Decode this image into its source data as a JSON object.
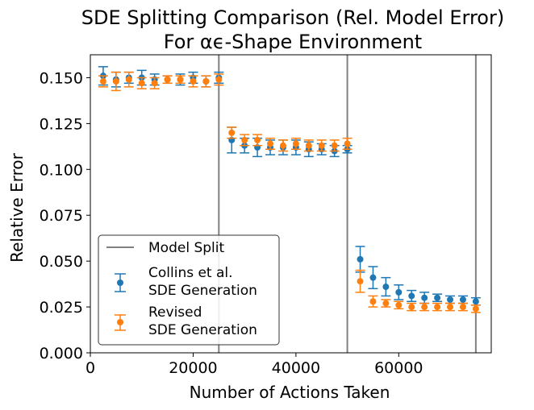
{
  "chart_data": {
    "type": "scatter",
    "title": "SDE Splitting Comparison (Rel. Model Error)",
    "subtitle": "For αϵ-Shape Environment",
    "xlabel": "Number of Actions Taken",
    "ylabel": "Relative Error",
    "xlim": [
      0,
      78000
    ],
    "ylim": [
      0.0,
      0.1625
    ],
    "x_ticks": [
      0,
      20000,
      40000,
      60000
    ],
    "y_ticks": [
      0.0,
      0.025,
      0.05,
      0.075,
      0.1,
      0.125,
      0.15
    ],
    "x_tick_labels": [
      "0",
      "20000",
      "40000",
      "60000"
    ],
    "y_tick_labels": [
      "0.000",
      "0.025",
      "0.050",
      "0.075",
      "0.100",
      "0.125",
      "0.150"
    ],
    "split_lines": [
      25000,
      50000,
      75000
    ],
    "legend": {
      "position": "lower-left",
      "split_label": "Model Split",
      "entries": [
        {
          "line1": "Collins et al.",
          "line2": "SDE Generation"
        },
        {
          "line1": "Revised",
          "line2": "SDE Generation"
        }
      ]
    },
    "series": [
      {
        "name": "Collins et al. SDE Generation",
        "color": "#1f77b4",
        "x": [
          2500,
          5000,
          7500,
          10000,
          12500,
          15000,
          17500,
          20000,
          22500,
          25000,
          27500,
          30000,
          32500,
          35000,
          37500,
          40000,
          42500,
          45000,
          47500,
          50000,
          52500,
          55000,
          57500,
          60000,
          62500,
          65000,
          67500,
          70000,
          72500,
          75000
        ],
        "y": [
          0.151,
          0.149,
          0.15,
          0.15,
          0.149,
          0.149,
          0.149,
          0.15,
          0.148,
          0.15,
          0.116,
          0.113,
          0.112,
          0.112,
          0.112,
          0.112,
          0.111,
          0.111,
          0.11,
          0.111,
          0.051,
          0.041,
          0.036,
          0.033,
          0.031,
          0.03,
          0.03,
          0.029,
          0.029,
          0.028
        ],
        "err": [
          0.005,
          0.004,
          0.003,
          0.004,
          0.003,
          0.002,
          0.003,
          0.003,
          0.003,
          0.003,
          0.007,
          0.004,
          0.005,
          0.004,
          0.004,
          0.004,
          0.004,
          0.003,
          0.003,
          0.002,
          0.007,
          0.006,
          0.005,
          0.004,
          0.003,
          0.003,
          0.002,
          0.002,
          0.002,
          0.002
        ]
      },
      {
        "name": "Revised SDE Generation",
        "color": "#ff7f0e",
        "x": [
          2500,
          5000,
          7500,
          10000,
          12500,
          15000,
          17500,
          20000,
          22500,
          25000,
          27500,
          30000,
          32500,
          35000,
          37500,
          40000,
          42500,
          45000,
          47500,
          50000,
          52500,
          55000,
          57500,
          60000,
          62500,
          65000,
          67500,
          70000,
          72500,
          75000
        ],
        "y": [
          0.148,
          0.148,
          0.149,
          0.147,
          0.147,
          0.149,
          0.149,
          0.148,
          0.148,
          0.149,
          0.12,
          0.116,
          0.116,
          0.114,
          0.113,
          0.114,
          0.113,
          0.113,
          0.113,
          0.114,
          0.039,
          0.028,
          0.027,
          0.026,
          0.025,
          0.025,
          0.025,
          0.025,
          0.025,
          0.024
        ],
        "err": [
          0.003,
          0.005,
          0.004,
          0.003,
          0.003,
          0.002,
          0.002,
          0.003,
          0.003,
          0.003,
          0.003,
          0.003,
          0.003,
          0.003,
          0.003,
          0.003,
          0.003,
          0.003,
          0.003,
          0.003,
          0.006,
          0.003,
          0.002,
          0.002,
          0.002,
          0.002,
          0.002,
          0.002,
          0.002,
          0.002
        ]
      }
    ]
  }
}
